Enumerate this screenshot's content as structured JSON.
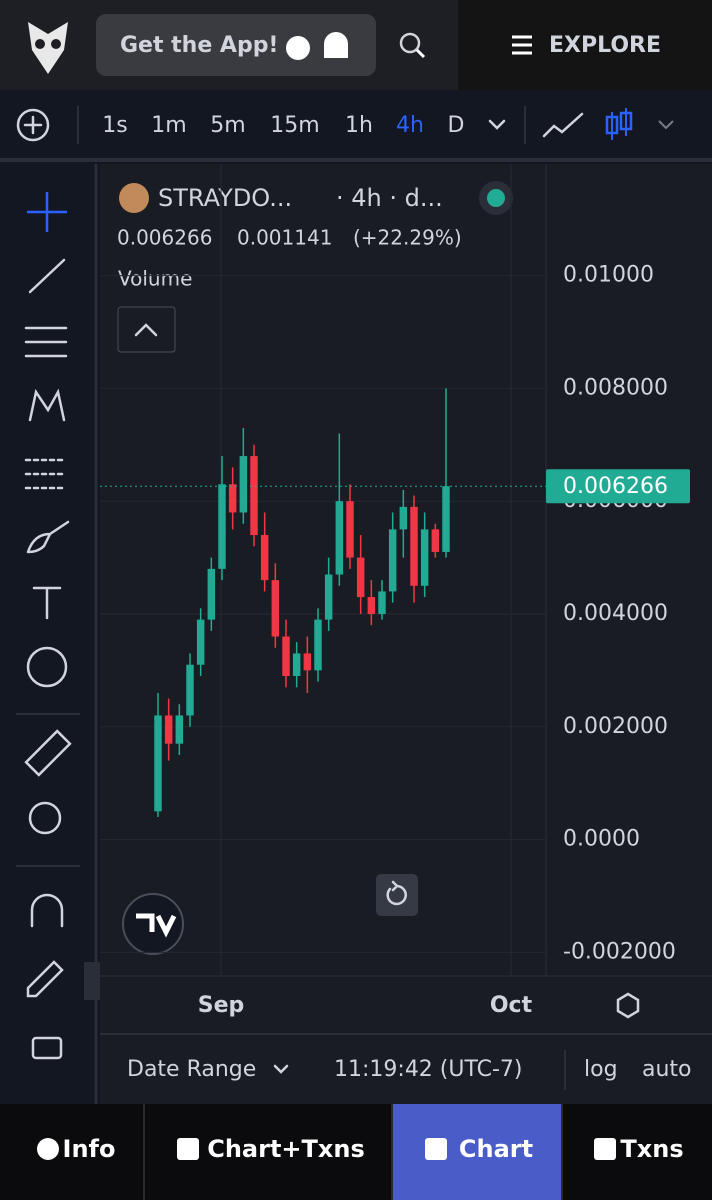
{
  "header": {
    "app_button": "Get the App!",
    "explore": "EXPLORE"
  },
  "toolbar": {
    "intervals": [
      "1s",
      "1m",
      "5m",
      "15m",
      "1h",
      "4h",
      "D"
    ],
    "active_interval": 5
  },
  "chart_data": {
    "type": "candlestick",
    "symbol": "STRAYDO...",
    "meta": "· 4h · d...",
    "last": 0.006266,
    "change": 0.001141,
    "change_label": "(+22.29%)",
    "volume_label": "Volume",
    "up_color": "#22ab94",
    "down_color": "#f23645",
    "ylim": [
      -0.00242,
      0.01198
    ],
    "yticks": [
      {
        "value": 0.01,
        "label": "0.01000"
      },
      {
        "value": 0.008,
        "label": "0.008000"
      },
      {
        "value": 0.006,
        "label": "0.006000"
      },
      {
        "value": 0.004,
        "label": "0.004000"
      },
      {
        "value": 0.002,
        "label": "0.002000"
      },
      {
        "value": 0,
        "label": "0.0000"
      },
      {
        "value": -0.002,
        "label": "-0.002000"
      }
    ],
    "xticks": [
      "Sep",
      "Oct"
    ],
    "candles": [
      {
        "o": 0.0005,
        "h": 0.0026,
        "l": 0.0004,
        "c": 0.0022
      },
      {
        "o": 0.0022,
        "h": 0.0025,
        "l": 0.0014,
        "c": 0.0017
      },
      {
        "o": 0.0017,
        "h": 0.0024,
        "l": 0.0015,
        "c": 0.0022
      },
      {
        "o": 0.0022,
        "h": 0.0033,
        "l": 0.002,
        "c": 0.0031
      },
      {
        "o": 0.0031,
        "h": 0.0041,
        "l": 0.0029,
        "c": 0.0039
      },
      {
        "o": 0.0039,
        "h": 0.005,
        "l": 0.0037,
        "c": 0.0048
      },
      {
        "o": 0.0048,
        "h": 0.0068,
        "l": 0.0046,
        "c": 0.0063
      },
      {
        "o": 0.0063,
        "h": 0.0066,
        "l": 0.0055,
        "c": 0.0058
      },
      {
        "o": 0.0058,
        "h": 0.0073,
        "l": 0.0056,
        "c": 0.0068
      },
      {
        "o": 0.0068,
        "h": 0.007,
        "l": 0.0052,
        "c": 0.0054
      },
      {
        "o": 0.0054,
        "h": 0.0058,
        "l": 0.0044,
        "c": 0.0046
      },
      {
        "o": 0.0046,
        "h": 0.0049,
        "l": 0.0034,
        "c": 0.0036
      },
      {
        "o": 0.0036,
        "h": 0.0039,
        "l": 0.0027,
        "c": 0.0029
      },
      {
        "o": 0.0029,
        "h": 0.0035,
        "l": 0.0027,
        "c": 0.0033
      },
      {
        "o": 0.0033,
        "h": 0.0036,
        "l": 0.0026,
        "c": 0.003
      },
      {
        "o": 0.003,
        "h": 0.0041,
        "l": 0.0028,
        "c": 0.0039
      },
      {
        "o": 0.0039,
        "h": 0.005,
        "l": 0.0037,
        "c": 0.0047
      },
      {
        "o": 0.0047,
        "h": 0.0072,
        "l": 0.0045,
        "c": 0.006
      },
      {
        "o": 0.006,
        "h": 0.0063,
        "l": 0.0048,
        "c": 0.005
      },
      {
        "o": 0.005,
        "h": 0.0054,
        "l": 0.004,
        "c": 0.0043
      },
      {
        "o": 0.0043,
        "h": 0.0046,
        "l": 0.0038,
        "c": 0.004
      },
      {
        "o": 0.004,
        "h": 0.0046,
        "l": 0.0039,
        "c": 0.0044
      },
      {
        "o": 0.0044,
        "h": 0.0058,
        "l": 0.0042,
        "c": 0.0055
      },
      {
        "o": 0.0055,
        "h": 0.0062,
        "l": 0.005,
        "c": 0.0059
      },
      {
        "o": 0.0059,
        "h": 0.0061,
        "l": 0.0042,
        "c": 0.0045
      },
      {
        "o": 0.0045,
        "h": 0.0058,
        "l": 0.0043,
        "c": 0.0055
      },
      {
        "o": 0.0055,
        "h": 0.0056,
        "l": 0.005,
        "c": 0.0051
      },
      {
        "o": 0.0051,
        "h": 0.008,
        "l": 0.005,
        "c": 0.006266
      }
    ]
  },
  "footer": {
    "date_range": "Date Range",
    "time": "11:19:42 (UTC-7)",
    "log": "log",
    "auto": "auto"
  },
  "tabs": [
    "Info",
    "Chart+Txns",
    "Chart",
    "Txns"
  ],
  "active_tab": 2
}
